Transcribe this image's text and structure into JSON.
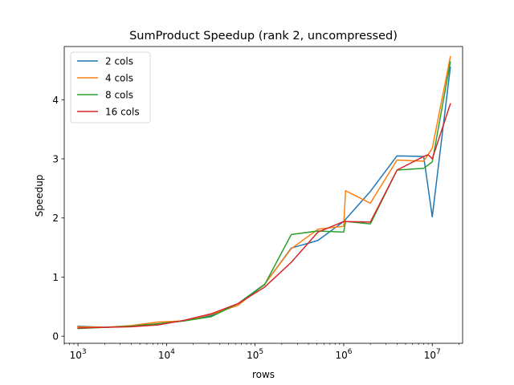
{
  "chart_data": {
    "type": "line",
    "title": "SumProduct Speedup (rank 2, uncompressed)",
    "xlabel": "rows",
    "ylabel": "Speedup",
    "xscale": "log",
    "xlim": [
      700,
      22000000
    ],
    "ylim": [
      -0.12,
      4.9
    ],
    "x_ticks": [
      {
        "value": 1000,
        "base": "10",
        "exp": "3"
      },
      {
        "value": 10000,
        "base": "10",
        "exp": "4"
      },
      {
        "value": 100000,
        "base": "10",
        "exp": "5"
      },
      {
        "value": 1000000,
        "base": "10",
        "exp": "6"
      },
      {
        "value": 10000000,
        "base": "10",
        "exp": "7"
      }
    ],
    "y_ticks": [
      0,
      1,
      2,
      3,
      4
    ],
    "grid": false,
    "legend_position": "top-left",
    "series": [
      {
        "name": "2 cols",
        "color": "#1f77b4",
        "x": [
          1000,
          2000,
          4000,
          8000,
          16000,
          32000,
          64000,
          128000,
          256000,
          512000,
          1000000,
          2000000,
          4000000,
          8000000,
          10000000,
          16000000
        ],
        "y": [
          0.17,
          0.15,
          0.17,
          0.21,
          0.26,
          0.35,
          0.55,
          0.88,
          1.49,
          1.62,
          1.94,
          2.45,
          3.05,
          3.04,
          2.02,
          4.55
        ]
      },
      {
        "name": "4 cols",
        "color": "#ff7f0e",
        "x": [
          1000,
          2000,
          4000,
          8000,
          16000,
          32000,
          64000,
          128000,
          256000,
          512000,
          1000000,
          1050000,
          2000000,
          4000000,
          8000000,
          10000000,
          16000000
        ],
        "y": [
          0.16,
          0.15,
          0.18,
          0.24,
          0.26,
          0.37,
          0.52,
          0.88,
          1.48,
          1.81,
          1.86,
          2.46,
          2.25,
          2.98,
          2.96,
          3.18,
          4.73
        ]
      },
      {
        "name": "8 cols",
        "color": "#2ca02c",
        "x": [
          1000,
          2000,
          4000,
          8000,
          16000,
          32000,
          64000,
          128000,
          256000,
          512000,
          1000000,
          1050000,
          2000000,
          4000000,
          8000000,
          10000000,
          16000000
        ],
        "y": [
          0.13,
          0.15,
          0.17,
          0.21,
          0.26,
          0.33,
          0.55,
          0.87,
          1.72,
          1.78,
          1.76,
          1.94,
          1.9,
          2.81,
          2.84,
          2.95,
          4.64
        ]
      },
      {
        "name": "16 cols",
        "color": "#d62728",
        "x": [
          1000,
          2000,
          4000,
          8000,
          16000,
          32000,
          64000,
          128000,
          256000,
          512000,
          1000000,
          2000000,
          4000000,
          8000000,
          9000000,
          10000000,
          16000000
        ],
        "y": [
          0.14,
          0.15,
          0.16,
          0.19,
          0.27,
          0.38,
          0.55,
          0.83,
          1.25,
          1.76,
          1.94,
          1.93,
          2.81,
          3.04,
          3.07,
          3.0,
          3.93
        ]
      }
    ]
  }
}
